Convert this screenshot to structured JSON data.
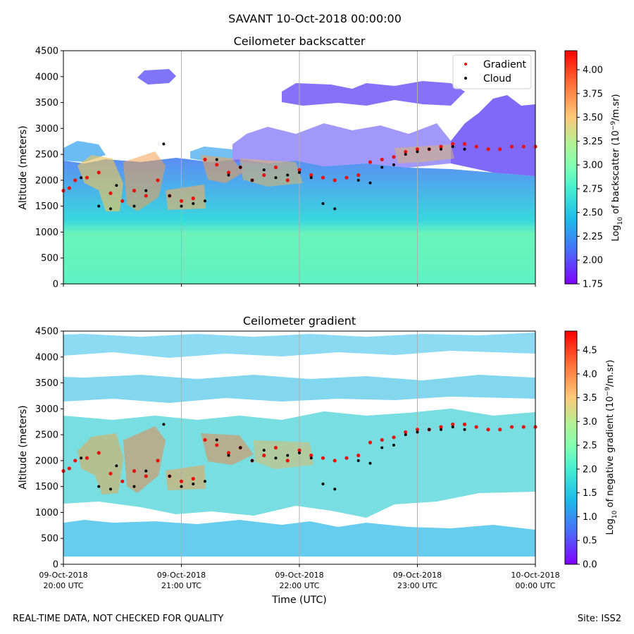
{
  "figure": {
    "suptitle": "SAVANT 10-Oct-2018 00:00:00",
    "footer_left": "REAL-TIME DATA, NOT CHECKED FOR QUALITY",
    "footer_right": "Site: ISS2"
  },
  "chart_data": [
    {
      "type": "heatmap",
      "title": "Ceilometer backscatter",
      "ylabel": "Altitude (meters)",
      "xlabel": "",
      "ylim": [
        0,
        4500
      ],
      "yticks": [
        0,
        500,
        1000,
        1500,
        2000,
        2500,
        3000,
        3500,
        4000,
        4500
      ],
      "xlim_hours": [
        0,
        4
      ],
      "xticks_hours": [
        0,
        1,
        2,
        3,
        4
      ],
      "colorbar": {
        "label": "Log10 of backscatter (10^-9/m.sr)",
        "label_main": "Log",
        "label_sub": "10",
        "label_rest": " of backscatter (10",
        "label_sup": "−9",
        "label_end": "/m.sr)",
        "range": [
          1.75,
          4.2
        ],
        "ticks": [
          1.75,
          2.0,
          2.25,
          2.5,
          2.75,
          3.0,
          3.25,
          3.5,
          3.75,
          4.0
        ],
        "tick_labels": [
          "1.75",
          "2.00",
          "2.25",
          "2.50",
          "2.75",
          "3.00",
          "3.25",
          "3.50",
          "3.75",
          "4.00"
        ]
      },
      "legend": {
        "placement": "top-right",
        "entries": [
          "Gradient",
          "Cloud"
        ]
      },
      "series": [
        {
          "name": "Gradient",
          "color": "#e8120c",
          "x": [
            0.0,
            0.05,
            0.1,
            0.2,
            0.3,
            0.4,
            0.5,
            0.6,
            0.7,
            0.8,
            0.9,
            1.0,
            1.1,
            1.2,
            1.3,
            1.4,
            1.5,
            1.6,
            1.7,
            1.8,
            1.9,
            2.0,
            2.1,
            2.2,
            2.3,
            2.4,
            2.5,
            2.6,
            2.7,
            2.8,
            2.9,
            3.0,
            3.1,
            3.2,
            3.3,
            3.4,
            3.5,
            3.6,
            3.7,
            3.8,
            3.9,
            4.0
          ],
          "y": [
            1800,
            1850,
            2000,
            2050,
            2150,
            1750,
            1600,
            1800,
            1700,
            2000,
            1700,
            1600,
            1650,
            2400,
            2300,
            2150,
            2250,
            2000,
            2100,
            2250,
            2000,
            2200,
            2100,
            2050,
            2000,
            2050,
            2100,
            2350,
            2400,
            2450,
            2550,
            2600,
            2600,
            2650,
            2700,
            2700,
            2650,
            2600,
            2600,
            2650,
            2650,
            2650
          ]
        },
        {
          "name": "Cloud",
          "color": "#000000",
          "x": [
            0.15,
            0.3,
            0.4,
            0.45,
            0.6,
            0.7,
            0.85,
            0.9,
            1.0,
            1.1,
            1.2,
            1.3,
            1.4,
            1.5,
            1.6,
            1.7,
            1.8,
            1.9,
            2.0,
            2.1,
            2.2,
            2.3,
            2.5,
            2.6,
            2.7,
            2.8,
            2.9,
            3.0,
            3.1,
            3.2,
            3.3,
            3.4
          ],
          "y": [
            2050,
            1500,
            1450,
            1900,
            1500,
            1800,
            2700,
            1700,
            1500,
            1550,
            1600,
            2400,
            2100,
            2250,
            2000,
            2200,
            2050,
            2100,
            2150,
            2050,
            1550,
            1450,
            2000,
            1950,
            2250,
            2300,
            2500,
            2550,
            2600,
            2600,
            2650,
            2600
          ]
        }
      ]
    },
    {
      "type": "heatmap",
      "title": "Ceilometer gradient",
      "ylabel": "Altitude (meters)",
      "xlabel": "Time (UTC)",
      "ylim": [
        0,
        4500
      ],
      "yticks": [
        0,
        500,
        1000,
        1500,
        2000,
        2500,
        3000,
        3500,
        4000,
        4500
      ],
      "xlim_hours": [
        0,
        4
      ],
      "xticks_hours": [
        0,
        1,
        2,
        3,
        4
      ],
      "xtick_labels": [
        [
          "09-Oct-2018",
          "20:00 UTC"
        ],
        [
          "09-Oct-2018",
          "21:00 UTC"
        ],
        [
          "09-Oct-2018",
          "22:00 UTC"
        ],
        [
          "09-Oct-2018",
          "23:00 UTC"
        ],
        [
          "10-Oct-2018",
          "00:00 UTC"
        ]
      ],
      "colorbar": {
        "label": "Log10 of negative gradient (10^-9/m.sr)",
        "label_main": "Log",
        "label_sub": "10",
        "label_rest": " of negative gradient (10",
        "label_sup": "−9",
        "label_end": "/m.sr)",
        "range": [
          0.0,
          4.9
        ],
        "ticks": [
          0.0,
          0.5,
          1.0,
          1.5,
          2.0,
          2.5,
          3.0,
          3.5,
          4.0,
          4.5
        ],
        "tick_labels": [
          "0.0",
          "0.5",
          "1.0",
          "1.5",
          "2.0",
          "2.5",
          "3.0",
          "3.5",
          "4.0",
          "4.5"
        ]
      },
      "series": [
        {
          "name": "Gradient",
          "color": "#e8120c",
          "x": [
            0.0,
            0.05,
            0.1,
            0.2,
            0.3,
            0.4,
            0.5,
            0.6,
            0.7,
            0.8,
            0.9,
            1.0,
            1.1,
            1.2,
            1.3,
            1.4,
            1.5,
            1.6,
            1.7,
            1.8,
            1.9,
            2.0,
            2.1,
            2.2,
            2.3,
            2.4,
            2.5,
            2.6,
            2.7,
            2.8,
            2.9,
            3.0,
            3.1,
            3.2,
            3.3,
            3.4,
            3.5,
            3.6,
            3.7,
            3.8,
            3.9,
            4.0
          ],
          "y": [
            1800,
            1850,
            2000,
            2050,
            2150,
            1750,
            1600,
            1800,
            1700,
            2000,
            1700,
            1600,
            1650,
            2400,
            2300,
            2150,
            2250,
            2000,
            2100,
            2250,
            2000,
            2200,
            2100,
            2050,
            2000,
            2050,
            2100,
            2350,
            2400,
            2450,
            2550,
            2600,
            2600,
            2650,
            2700,
            2700,
            2650,
            2600,
            2600,
            2650,
            2650,
            2650
          ]
        },
        {
          "name": "Cloud",
          "color": "#000000",
          "x": [
            0.15,
            0.3,
            0.4,
            0.45,
            0.6,
            0.7,
            0.85,
            0.9,
            1.0,
            1.1,
            1.2,
            1.3,
            1.4,
            1.5,
            1.6,
            1.7,
            1.8,
            1.9,
            2.0,
            2.1,
            2.2,
            2.3,
            2.5,
            2.6,
            2.7,
            2.8,
            2.9,
            3.0,
            3.1,
            3.2,
            3.3,
            3.4
          ],
          "y": [
            2050,
            1500,
            1450,
            1900,
            1500,
            1800,
            2700,
            1700,
            1500,
            1550,
            1600,
            2400,
            2100,
            2250,
            2000,
            2200,
            2050,
            2100,
            2150,
            2050,
            1550,
            1450,
            2000,
            1950,
            2250,
            2300,
            2500,
            2550,
            2600,
            2600,
            2650,
            2600
          ]
        }
      ]
    }
  ]
}
